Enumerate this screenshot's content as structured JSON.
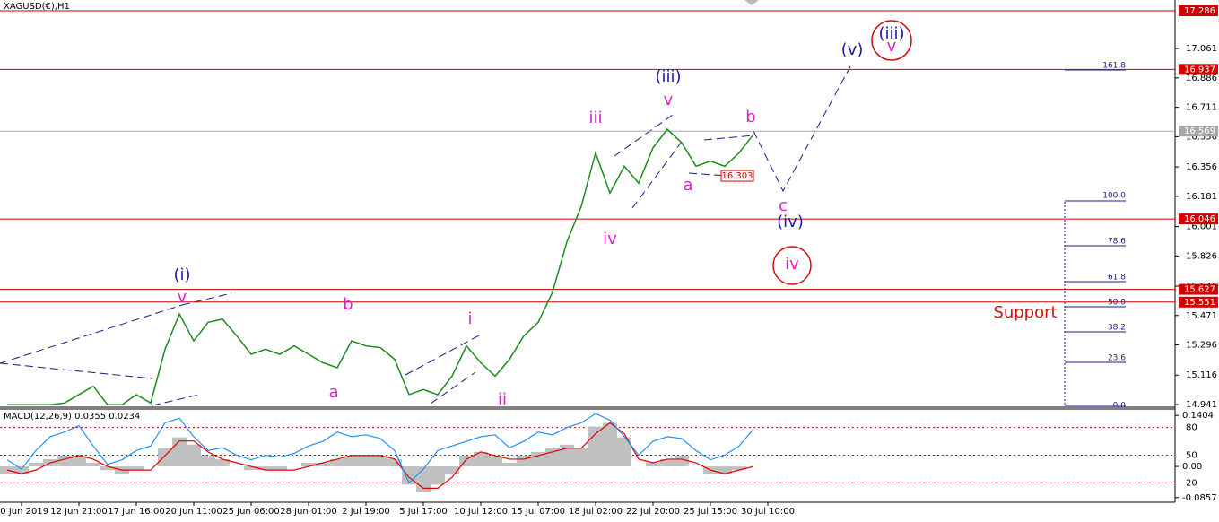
{
  "chart_data": [
    {
      "type": "line",
      "title": "XAGUSD(€),H1",
      "categories": [
        null,
        "10 Jun 2019",
        null,
        null,
        null,
        "12 Jun 21:00",
        null,
        null,
        null,
        "17 Jun 16:00",
        null,
        null,
        null,
        "20 Jun 11:00",
        null,
        null,
        null,
        "25 Jun 06:00",
        null,
        null,
        null,
        "28 Jun 01:00",
        null,
        null,
        null,
        "2 Jul 19:00",
        null,
        null,
        null,
        "5 Jul 17:00",
        null,
        null,
        null,
        "10 Jul 12:00",
        null,
        null,
        null,
        "15 Jul 07:00",
        null,
        null,
        null,
        "18 Jul 02:00",
        null,
        null,
        null,
        "22 Jul 20:00",
        null,
        null,
        null,
        "25 Jul 15:00",
        null,
        null,
        null,
        "30 Jul 10:00"
      ],
      "series": [
        {
          "color": "#1e8a1e",
          "values": [
            14.94,
            14.94,
            14.94,
            14.94,
            14.95,
            15.0,
            15.05,
            14.94,
            14.94,
            15.0,
            14.95,
            15.27,
            15.48,
            15.32,
            15.43,
            15.45,
            15.35,
            15.24,
            15.27,
            15.24,
            15.29,
            15.24,
            15.19,
            15.16,
            15.32,
            15.29,
            15.28,
            15.21,
            15.0,
            15.03,
            15.0,
            15.11,
            15.29,
            15.19,
            15.11,
            15.21,
            15.35,
            15.43,
            15.61,
            15.91,
            16.12,
            16.44,
            16.2,
            16.36,
            16.26,
            16.47,
            16.58,
            16.5,
            16.36,
            16.39,
            16.36,
            16.44,
            16.55,
            null
          ]
        }
      ],
      "ylim": [
        14.925,
        17.35
      ],
      "yticks": [
        17.061,
        16.886,
        16.711,
        16.536,
        16.356,
        16.181,
        16.001,
        15.826,
        15.646,
        15.471,
        15.296,
        15.116,
        14.941
      ],
      "levels": [
        {
          "value": 17.286,
          "color": "#d00000"
        },
        {
          "value": 16.937,
          "color": "#d00000"
        },
        {
          "value": 16.569,
          "color": "#a8a8a8"
        },
        {
          "value": 16.046,
          "color": "#d00000"
        },
        {
          "value": 15.627,
          "color": "#d00000"
        },
        {
          "value": 15.551,
          "color": "#d00000"
        }
      ],
      "annotations": [
        {
          "text": "(i)",
          "color": "#1a1aa8"
        },
        {
          "text": "v",
          "color": "#e020c8"
        },
        {
          "text": "b",
          "color": "#e020c8"
        },
        {
          "text": "a",
          "color": "#e020c8"
        },
        {
          "text": "i",
          "color": "#e020c8"
        },
        {
          "text": "ii",
          "color": "#e020c8"
        },
        {
          "text": "iii",
          "color": "#e020c8"
        },
        {
          "text": "iv",
          "color": "#e020c8"
        },
        {
          "text": "(iii)",
          "color": "#1a1aa8"
        },
        {
          "text": "v",
          "color": "#e020c8"
        },
        {
          "text": "b",
          "color": "#e020c8"
        },
        {
          "text": "a",
          "color": "#e020c8"
        },
        {
          "text": "c",
          "color": "#e020c8"
        },
        {
          "text": "(iv)",
          "color": "#1a1aa8"
        },
        {
          "text": "(v)",
          "color": "#1a1aa8"
        },
        {
          "text": "(iii)",
          "color": "#1a1aa8"
        },
        {
          "text": "v",
          "color": "#e020c8"
        },
        {
          "text": "iv",
          "color": "#e020c8"
        },
        {
          "text": "Support",
          "color": "#d01010"
        }
      ],
      "fib_labels": [
        "161.8",
        "100.0",
        "78.6",
        "61.8",
        "50.0",
        "38.2",
        "23.6",
        "0.0"
      ],
      "price_note": 16.303
    },
    {
      "type": "macd",
      "title": "MACD(12,26,9) 0.0355 0.0234",
      "series": [
        {
          "color": "#c0c0c0",
          "values": [
            -0.02,
            -0.02,
            0.01,
            0.02,
            0.03,
            0.03,
            0.01,
            -0.01,
            -0.02,
            -0.01,
            0.0,
            0.05,
            0.08,
            0.06,
            0.03,
            0.02,
            0.0,
            -0.01,
            -0.01,
            -0.01,
            0.0,
            0.01,
            0.01,
            0.02,
            0.03,
            0.03,
            0.03,
            0.02,
            -0.05,
            -0.07,
            -0.05,
            -0.02,
            0.03,
            0.04,
            0.03,
            0.01,
            0.03,
            0.04,
            0.05,
            0.06,
            0.05,
            0.11,
            0.12,
            0.08,
            0.0,
            0.01,
            0.02,
            0.03,
            0.0,
            -0.02,
            -0.02,
            -0.01,
            0.0,
            null
          ]
        },
        {
          "color": "#e00000",
          "values": [
            -0.01,
            -0.02,
            -0.01,
            0.01,
            0.02,
            0.03,
            0.02,
            0.0,
            -0.01,
            -0.01,
            -0.01,
            0.03,
            0.07,
            0.07,
            0.04,
            0.02,
            0.01,
            0.0,
            -0.01,
            -0.01,
            -0.01,
            0.0,
            0.01,
            0.02,
            0.03,
            0.03,
            0.03,
            0.02,
            -0.03,
            -0.06,
            -0.06,
            -0.03,
            0.02,
            0.04,
            0.03,
            0.02,
            0.02,
            0.03,
            0.04,
            0.05,
            0.05,
            0.09,
            0.12,
            0.09,
            0.02,
            0.01,
            0.02,
            0.02,
            0.01,
            -0.01,
            -0.02,
            -0.01,
            0.0,
            null
          ]
        },
        {
          "color": "#1e90ff",
          "axis": "y2",
          "values": [
            45,
            35,
            55,
            70,
            75,
            82,
            60,
            40,
            45,
            55,
            60,
            85,
            90,
            70,
            55,
            58,
            50,
            45,
            50,
            48,
            52,
            60,
            65,
            75,
            70,
            72,
            68,
            55,
            20,
            35,
            55,
            60,
            65,
            70,
            72,
            58,
            65,
            75,
            72,
            80,
            85,
            95,
            88,
            70,
            50,
            65,
            70,
            68,
            55,
            45,
            50,
            60,
            78,
            null
          ]
        }
      ],
      "ylim": [
        -0.096,
        0.158
      ],
      "yticks": [
        0.1404,
        {
          "value": 0,
          "label": "0.00"
        },
        -0.0857
      ],
      "y2lim": [
        0,
        100
      ],
      "y2ticks": [
        80,
        50,
        20
      ]
    }
  ]
}
